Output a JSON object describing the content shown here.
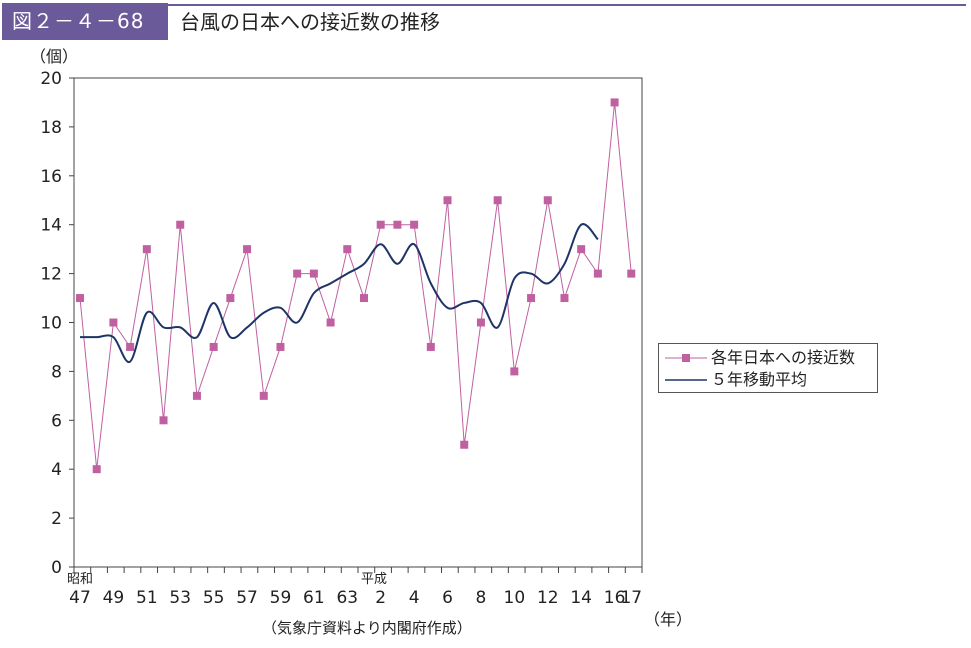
{
  "figure": {
    "badge": "図２－４－68",
    "title": "台風の日本への接近数の推移",
    "source": "（気象庁資料より内閣府作成）"
  },
  "colors": {
    "header": "#6a5a9a",
    "series_annual": "#c060a0",
    "series_average": "#1f3466"
  },
  "chart_data": {
    "type": "line",
    "title": "",
    "ylabel": "（個）",
    "xlabel": "（年）",
    "ylim": [
      0,
      20
    ],
    "yticks": [
      0,
      2,
      4,
      6,
      8,
      10,
      12,
      14,
      16,
      18,
      20
    ],
    "grid": false,
    "legend_position": "right",
    "x": [
      47,
      48,
      49,
      50,
      51,
      52,
      53,
      54,
      55,
      56,
      57,
      58,
      59,
      60,
      61,
      62,
      63,
      1,
      2,
      3,
      4,
      5,
      6,
      7,
      8,
      9,
      10,
      11,
      12,
      13,
      14,
      15,
      16,
      17
    ],
    "x_tick_labels": [
      "47",
      "49",
      "51",
      "53",
      "55",
      "57",
      "59",
      "61",
      "63",
      "2",
      "4",
      "6",
      "8",
      "10",
      "12",
      "14",
      "16",
      "17"
    ],
    "era_labels": [
      {
        "label": "昭和",
        "at": 47
      },
      {
        "label": "平成",
        "at": 1
      }
    ],
    "series": [
      {
        "name": "各年日本への接近数",
        "marker": "square",
        "values": [
          11,
          4,
          10,
          9,
          13,
          6,
          14,
          7,
          9,
          11,
          13,
          7,
          9,
          12,
          12,
          10,
          13,
          11,
          14,
          14,
          14,
          9,
          15,
          5,
          10,
          15,
          8,
          11,
          15,
          11,
          13,
          12,
          19,
          12
        ]
      },
      {
        "name": "５年移動平均",
        "marker": "none",
        "values": [
          9.4,
          9.4,
          9.4,
          8.4,
          10.4,
          9.8,
          9.8,
          9.4,
          10.8,
          9.4,
          9.8,
          10.4,
          10.6,
          10.0,
          11.2,
          11.6,
          12.0,
          12.4,
          13.2,
          12.4,
          13.2,
          11.6,
          10.6,
          10.8,
          10.8,
          9.8,
          11.8,
          12.0,
          11.6,
          12.4,
          14.0,
          13.4,
          null,
          null
        ]
      }
    ]
  }
}
